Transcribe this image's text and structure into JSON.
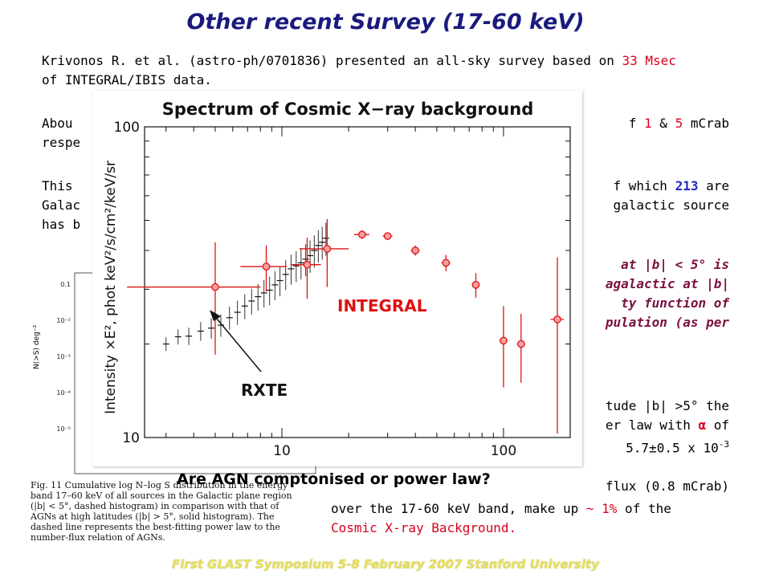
{
  "title": "Other recent Survey (17-60 keV)",
  "intro": {
    "line1_a": "Krivonos R. et al. (astro-ph/0701836) presented an all-sky survey based on ",
    "line1_red": "33 Msec",
    "line2": "of INTEGRAL/IBIS data.",
    "para2_left_a": "Abou",
    "para2_left_b": "respe",
    "para2_right_a": "f ",
    "para2_right_red1": "1",
    "para2_right_mid": " & ",
    "para2_right_red2": "5",
    "para2_right_b": " mCrab",
    "para3_left_a": "This ",
    "para3_left_b": "Galac",
    "para3_left_c": "has b",
    "para3_right_a": "f which ",
    "para3_right_blue": "213",
    "para3_right_b": " are",
    "para3_right_c": "galactic source"
  },
  "purple_block": {
    "l1": "at |b| < 5° is",
    "l2": "agalactic at |b|",
    "l3": "ty function of",
    "l4": "pulation (as per"
  },
  "right_block": {
    "l1": "tude |b| >5° the",
    "l2_a": "er law with ",
    "l2_alpha": "α",
    "l2_b": " of",
    "l3_a": "5.7±0.5 x 10",
    "l3_sup": "-3"
  },
  "bottom_block": {
    "l1": "flux (0.8 mCrab)",
    "l2_a": "over the  17-60 keV band,  make up ",
    "l2_red": "~ 1%",
    "l2_b": " of the",
    "l3_red": "Cosmic X-ray Background."
  },
  "question": "Are AGN comptonised or power law?",
  "footer": "First GLAST Symposium    5-8 February 2007  Stanford University",
  "bg_figure": {
    "caption": "Fig. 11 Cumulative log N–log S distribution in the energy band 17–60 keV of all sources in the Galactic plane region (|b| < 5°, dashed histogram) in comparison with that of AGNs at high latitudes (|b| > 5°, solid histogram). The dashed line represents the best-fitting power law to the number-flux relation of AGNs.",
    "ylabel": "N(>S) deg⁻²",
    "yticks": [
      "0.1",
      "10⁻²",
      "10⁻³",
      "10⁻⁴",
      "10⁻⁵"
    ]
  },
  "chart_data": {
    "type": "scatter",
    "title": "Spectrum of Cosmic X−ray background",
    "xlabel": "",
    "ylabel": "Intensity ×E², phot keV²/s/cm²/keV/sr",
    "xscale": "log",
    "yscale": "log",
    "xlim": [
      2.4,
      200
    ],
    "ylim": [
      10,
      100
    ],
    "xticks": [
      "10",
      "100"
    ],
    "yticks": [
      "10",
      "100"
    ],
    "annotations": [
      "INTEGRAL",
      "RXTE"
    ],
    "colors": {
      "INTEGRAL": "#e01010",
      "RXTE": "#222222"
    },
    "series": [
      {
        "name": "RXTE",
        "points": [
          [
            3.0,
            20.0
          ],
          [
            3.4,
            21.1
          ],
          [
            3.8,
            21.2
          ],
          [
            4.3,
            22.0
          ],
          [
            4.8,
            22.5
          ],
          [
            5.3,
            23.0
          ],
          [
            5.8,
            24.3
          ],
          [
            6.3,
            25.3
          ],
          [
            6.8,
            26.5
          ],
          [
            7.3,
            27.5
          ],
          [
            7.8,
            28.4
          ],
          [
            8.3,
            29.2
          ],
          [
            8.8,
            29.8
          ],
          [
            9.3,
            31.0
          ],
          [
            9.8,
            32.0
          ],
          [
            10.4,
            33.5
          ],
          [
            11.0,
            34.9
          ],
          [
            11.6,
            35.7
          ],
          [
            12.2,
            36.5
          ],
          [
            12.8,
            37.5
          ],
          [
            13.4,
            38.5
          ],
          [
            14.0,
            40.0
          ],
          [
            14.6,
            41.5
          ],
          [
            15.2,
            42.5
          ],
          [
            15.8,
            43.8
          ]
        ]
      },
      {
        "name": "INTEGRAL",
        "points": [
          [
            5.0,
            30.5
          ],
          [
            8.5,
            35.5
          ],
          [
            13.0,
            36.0
          ],
          [
            16.0,
            40.5
          ],
          [
            23.0,
            45.0
          ],
          [
            30.0,
            44.5
          ],
          [
            40.0,
            40.0
          ],
          [
            55.0,
            36.5
          ],
          [
            75.0,
            31.0
          ],
          [
            100.0,
            20.5
          ],
          [
            120.0,
            20.0
          ],
          [
            175.0,
            24.0
          ]
        ],
        "errors": [
          [
            3.0,
            12.0
          ],
          [
            2.0,
            6.0
          ],
          [
            2.0,
            8.0
          ],
          [
            4.0,
            10.0
          ],
          [
            1.8,
            1.5
          ],
          [
            1.5,
            1.2
          ],
          [
            1.8,
            1.5
          ],
          [
            2.5,
            2.2
          ],
          [
            3.0,
            2.8
          ],
          [
            4.0,
            6.0
          ],
          [
            5.0,
            5.0
          ],
          [
            12.0,
            14.0
          ]
        ]
      }
    ]
  }
}
